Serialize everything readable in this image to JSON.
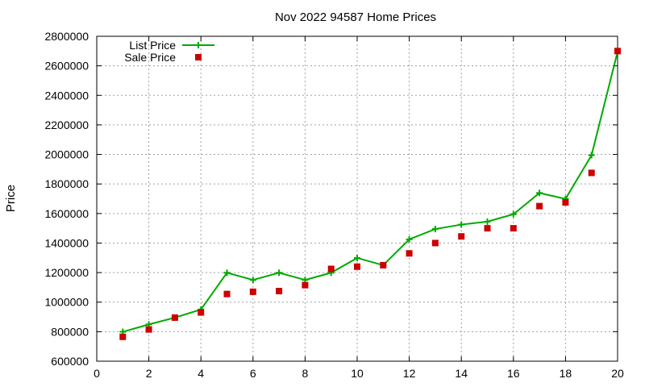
{
  "chart_data": {
    "type": "line",
    "title": "Nov 2022 94587 Home Prices",
    "xlabel": "",
    "ylabel": "Price",
    "xlim": [
      0,
      20
    ],
    "ylim": [
      600000,
      2800000
    ],
    "x_ticks": [
      0,
      2,
      4,
      6,
      8,
      10,
      12,
      14,
      16,
      18,
      20
    ],
    "y_ticks": [
      600000,
      800000,
      1000000,
      1200000,
      1400000,
      1600000,
      1800000,
      2000000,
      2200000,
      2400000,
      2600000,
      2800000
    ],
    "grid": true,
    "legend_position": "top-left",
    "series": [
      {
        "name": "List Price",
        "style": "line+cross",
        "color": "#00aa00",
        "x": [
          1,
          2,
          3,
          4,
          5,
          6,
          7,
          8,
          9,
          10,
          11,
          12,
          13,
          14,
          15,
          16,
          17,
          18,
          19,
          20
        ],
        "values": [
          799000,
          849000,
          895000,
          950000,
          1199000,
          1150000,
          1199000,
          1150000,
          1199000,
          1299000,
          1250000,
          1425000,
          1495000,
          1525000,
          1545000,
          1595000,
          1739000,
          1699000,
          1995000,
          2695000
        ]
      },
      {
        "name": "Sale Price",
        "style": "square",
        "color": "#cc0000",
        "x": [
          1,
          2,
          3,
          4,
          5,
          6,
          7,
          8,
          9,
          10,
          11,
          12,
          13,
          14,
          15,
          16,
          17,
          18,
          19,
          20
        ],
        "values": [
          765000,
          815000,
          895000,
          930000,
          1055000,
          1070000,
          1075000,
          1115000,
          1225000,
          1240000,
          1250000,
          1330000,
          1400000,
          1445000,
          1500000,
          1500000,
          1650000,
          1675000,
          1875000,
          2700000
        ]
      }
    ]
  }
}
